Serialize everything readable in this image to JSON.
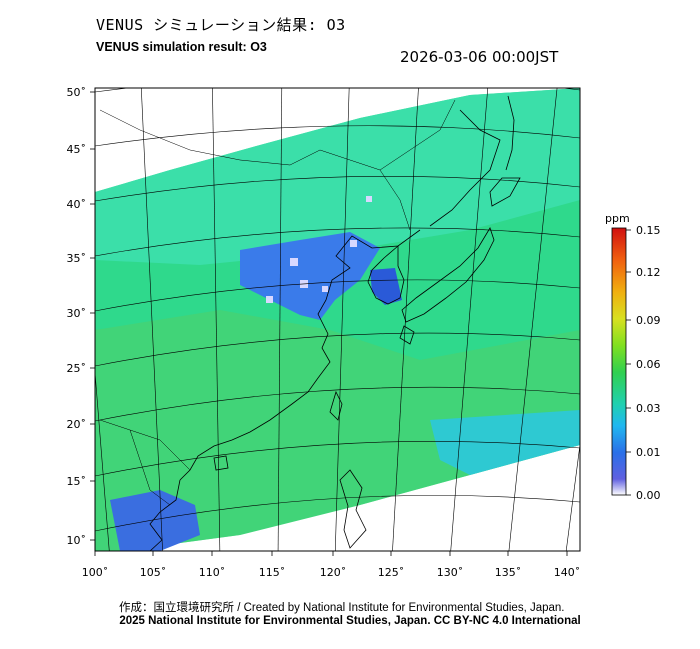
{
  "header": {
    "title_jp": "VENUS シミュレーション結果: O3",
    "title_en": "VENUS simulation result: O3",
    "timestamp": "2026-03-06 00:00JST"
  },
  "map": {
    "lon_labels": [
      "100˚",
      "105˚",
      "110˚",
      "115˚",
      "120˚",
      "125˚",
      "130˚",
      "135˚",
      "140˚"
    ],
    "lat_labels": [
      "50˚",
      "45˚",
      "40˚",
      "35˚",
      "30˚",
      "25˚",
      "20˚",
      "15˚",
      "10˚"
    ],
    "field_colors": {
      "base": "#2fd98c",
      "north": "#3fe0b0",
      "south_sea": "#4fd06a",
      "low": "#3a7bea",
      "very_low": "#d8d8ff"
    }
  },
  "colorbar": {
    "unit": "ppm",
    "ticks": [
      "0.15",
      "0.12",
      "0.09",
      "0.06",
      "0.03",
      "0.01",
      "0.00"
    ],
    "colors": [
      "#d02010",
      "#f07010",
      "#f0c010",
      "#c8e020",
      "#50d020",
      "#20c880",
      "#20c8e0",
      "#2080f0",
      "#3030c0",
      "#e8e8ff"
    ]
  },
  "footer": {
    "credit_line1": "作成：国立環境研究所 / Created by National Institute for Environmental Studies, Japan.",
    "credit_line2": "2025 National Institute for Environmental Studies, Japan. CC BY-NC 4.0 International"
  }
}
